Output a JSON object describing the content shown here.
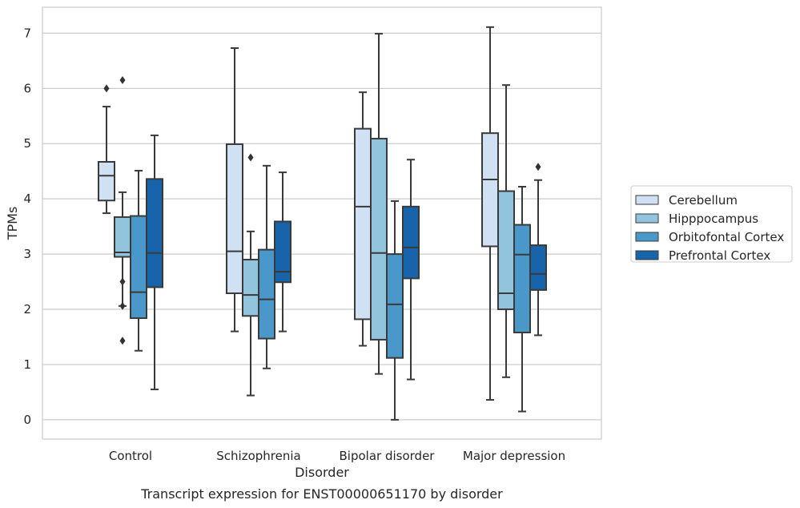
{
  "chart_data": {
    "type": "box",
    "xlabel": "Disorder",
    "ylabel": "TPMs",
    "caption": "Transcript expression for ENST00000651170 by disorder",
    "ylim": [
      -0.35,
      7.47
    ],
    "yticks": [
      0,
      1,
      2,
      3,
      4,
      5,
      6,
      7
    ],
    "grid": "horizontal",
    "legend_position": "right",
    "categories": [
      "Control",
      "Schizophrenia",
      "Bipolar disorder",
      "Major depression"
    ],
    "series": [
      {
        "name": "Cerebellum",
        "color": "#cfe1f2",
        "boxes": [
          {
            "whisker_low": 3.74,
            "q1": 3.97,
            "median": 4.42,
            "q3": 4.67,
            "whisker_high": 5.67,
            "outliers": [
              6.0
            ]
          },
          {
            "whisker_low": 1.6,
            "q1": 2.29,
            "median": 3.05,
            "q3": 4.99,
            "whisker_high": 6.73,
            "outliers": []
          },
          {
            "whisker_low": 1.34,
            "q1": 1.82,
            "median": 3.86,
            "q3": 5.27,
            "whisker_high": 5.93,
            "outliers": []
          },
          {
            "whisker_low": 0.36,
            "q1": 3.14,
            "median": 4.35,
            "q3": 5.19,
            "whisker_high": 7.11,
            "outliers": []
          }
        ]
      },
      {
        "name": "Hipppocampus",
        "color": "#93c4de",
        "boxes": [
          {
            "whisker_low": 2.06,
            "q1": 2.95,
            "median": 3.03,
            "q3": 3.67,
            "whisker_high": 4.12,
            "outliers": [
              2.5,
              2.06,
              1.43,
              6.15
            ]
          },
          {
            "whisker_low": 0.44,
            "q1": 1.88,
            "median": 2.26,
            "q3": 2.9,
            "whisker_high": 3.41,
            "outliers": [
              4.75
            ]
          },
          {
            "whisker_low": 0.83,
            "q1": 1.45,
            "median": 3.02,
            "q3": 5.09,
            "whisker_high": 6.99,
            "outliers": []
          },
          {
            "whisker_low": 0.77,
            "q1": 2.0,
            "median": 2.29,
            "q3": 4.14,
            "whisker_high": 6.06,
            "outliers": []
          }
        ]
      },
      {
        "name": "Orbitofontal Cortex",
        "color": "#4a98c9",
        "boxes": [
          {
            "whisker_low": 1.25,
            "q1": 1.84,
            "median": 2.31,
            "q3": 3.69,
            "whisker_high": 4.51,
            "outliers": []
          },
          {
            "whisker_low": 0.93,
            "q1": 1.47,
            "median": 2.18,
            "q3": 3.08,
            "whisker_high": 4.6,
            "outliers": []
          },
          {
            "whisker_low": 0.0,
            "q1": 1.12,
            "median": 2.09,
            "q3": 3.0,
            "whisker_high": 3.96,
            "outliers": []
          },
          {
            "whisker_low": 0.15,
            "q1": 1.58,
            "median": 2.99,
            "q3": 3.53,
            "whisker_high": 4.22,
            "outliers": []
          }
        ]
      },
      {
        "name": "Prefrontal Cortex",
        "color": "#1764ab",
        "boxes": [
          {
            "whisker_low": 0.55,
            "q1": 2.4,
            "median": 3.02,
            "q3": 4.36,
            "whisker_high": 5.15,
            "outliers": []
          },
          {
            "whisker_low": 1.6,
            "q1": 2.49,
            "median": 2.68,
            "q3": 3.59,
            "whisker_high": 4.48,
            "outliers": []
          },
          {
            "whisker_low": 0.73,
            "q1": 2.56,
            "median": 3.12,
            "q3": 3.86,
            "whisker_high": 4.71,
            "outliers": []
          },
          {
            "whisker_low": 1.53,
            "q1": 2.35,
            "median": 2.64,
            "q3": 3.16,
            "whisker_high": 4.34,
            "outliers": [
              4.58
            ]
          }
        ]
      }
    ]
  }
}
